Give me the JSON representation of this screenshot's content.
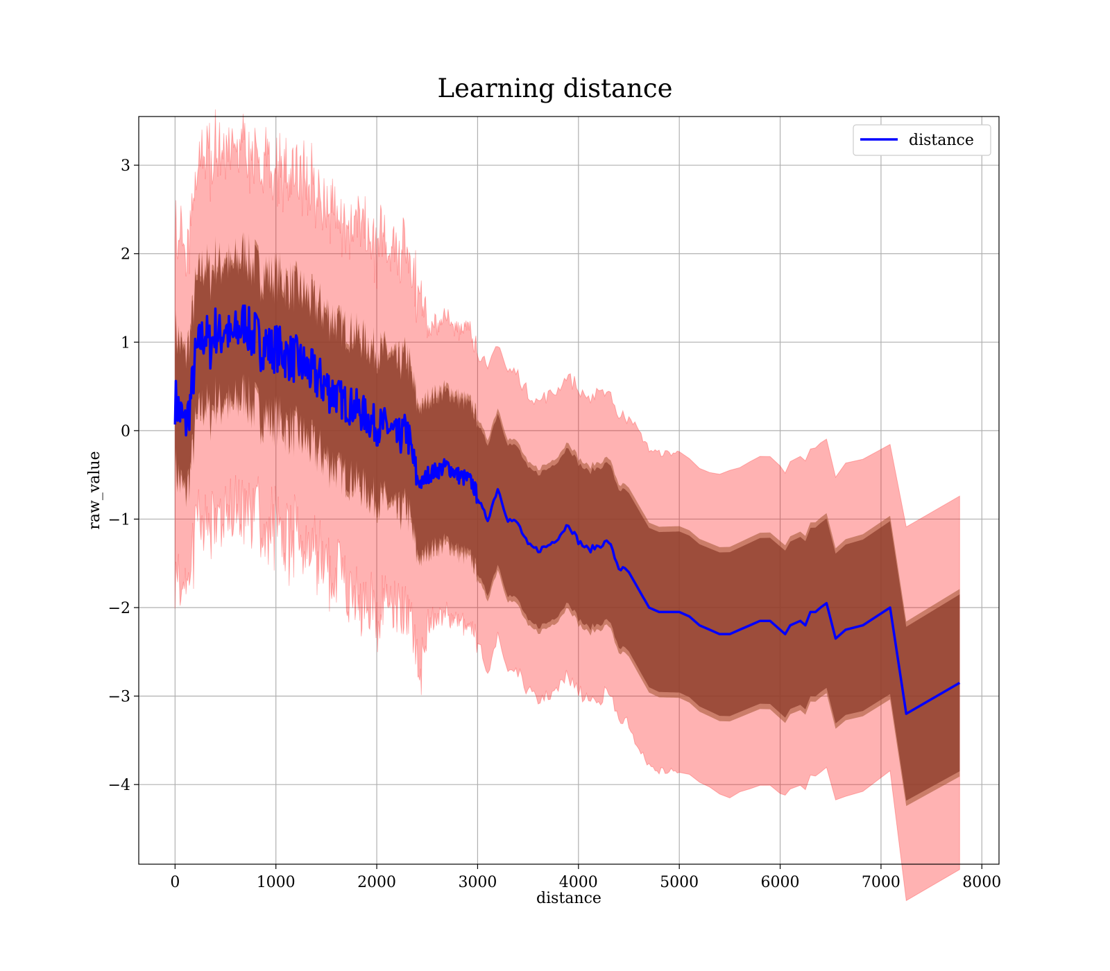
{
  "chart_data": {
    "type": "line",
    "title": "Learning distance",
    "xlabel": "distance",
    "ylabel": "raw_value",
    "xlim": [
      -360,
      8170
    ],
    "ylim": [
      -4.9,
      3.55
    ],
    "xticks": [
      0,
      1000,
      2000,
      3000,
      4000,
      5000,
      6000,
      7000,
      8000
    ],
    "xtick_labels": [
      "0",
      "1000",
      "2000",
      "3000",
      "4000",
      "5000",
      "6000",
      "7000",
      "8000"
    ],
    "yticks": [
      3,
      2,
      1,
      0,
      -1,
      -2,
      -3,
      -4
    ],
    "ytick_labels": [
      "3",
      "2",
      "1",
      "0",
      "−1",
      "−2",
      "−3",
      "−4"
    ],
    "grid": true,
    "legend_position": "top-right",
    "colors": {
      "line": "#0000ff",
      "outer_band": "#ff0000",
      "inner_band": "#8b3a2a",
      "mid_band": "#a0522d",
      "grid": "#b0b0b0"
    },
    "series": [
      {
        "name": "distance",
        "x": [
          0,
          50,
          100,
          150,
          200,
          250,
          300,
          350,
          400,
          450,
          500,
          550,
          600,
          650,
          700,
          750,
          800,
          850,
          900,
          950,
          1000,
          1100,
          1200,
          1300,
          1400,
          1500,
          1600,
          1700,
          1800,
          1900,
          2000,
          2100,
          2200,
          2300,
          2400,
          2450,
          2500,
          2600,
          2700,
          2800,
          2900,
          2950,
          3000,
          3050,
          3100,
          3200,
          3300,
          3400,
          3500,
          3600,
          3700,
          3800,
          3900,
          4000,
          4100,
          4200,
          4300,
          4400,
          4500,
          4600,
          4700,
          4800,
          4900,
          5000,
          5100,
          5200,
          5300,
          5400,
          5500,
          5600,
          5700,
          5800,
          5900,
          6000,
          6050,
          6100,
          6200,
          6250,
          6300,
          6350,
          6400,
          6460,
          6550,
          6650,
          6820,
          7090,
          7250,
          7780
        ],
        "y": [
          0.35,
          0.2,
          0.05,
          0.3,
          0.8,
          1.0,
          1.1,
          0.95,
          1.15,
          1.05,
          1.2,
          1.0,
          1.1,
          1.15,
          1.25,
          1.05,
          1.1,
          0.95,
          1.0,
          0.9,
          0.95,
          0.85,
          0.8,
          0.7,
          0.6,
          0.5,
          0.4,
          0.3,
          0.25,
          0.15,
          0.05,
          0.05,
          -0.1,
          0.0,
          -0.55,
          -0.6,
          -0.5,
          -0.45,
          -0.4,
          -0.5,
          -0.55,
          -0.6,
          -0.75,
          -0.9,
          -1.0,
          -0.65,
          -1.0,
          -1.05,
          -1.3,
          -1.35,
          -1.3,
          -1.2,
          -1.05,
          -1.25,
          -1.35,
          -1.3,
          -1.25,
          -1.55,
          -1.6,
          -1.8,
          -2.0,
          -2.05,
          -2.05,
          -2.05,
          -2.1,
          -2.2,
          -2.25,
          -2.3,
          -2.3,
          -2.25,
          -2.2,
          -2.15,
          -2.15,
          -2.25,
          -2.3,
          -2.2,
          -2.15,
          -2.2,
          -2.05,
          -2.05,
          -2.0,
          -1.95,
          -2.35,
          -2.25,
          -2.2,
          -2.0,
          -3.2,
          -2.85
        ]
      }
    ]
  }
}
